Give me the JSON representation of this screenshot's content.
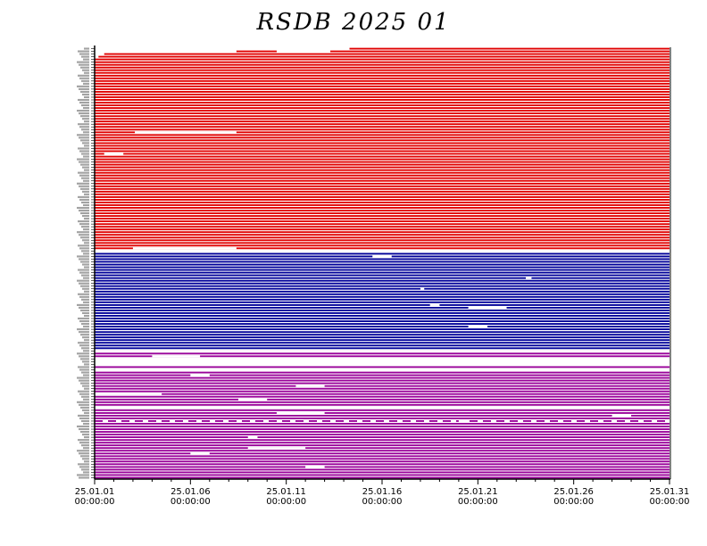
{
  "chart_data": {
    "type": "bar",
    "title": "RSDB  2025  01",
    "xlabel": "",
    "ylabel": "",
    "x_range": [
      "25.01.01 00:00:00",
      "25.01.31 00:00:00"
    ],
    "x_ticks": [
      {
        "date": "25.01.01",
        "time": "00:00:00",
        "day": 0
      },
      {
        "date": "25.01.06",
        "time": "00:00:00",
        "day": 5
      },
      {
        "date": "25.01.11",
        "time": "00:00:00",
        "day": 10
      },
      {
        "date": "25.01.16",
        "time": "00:00:00",
        "day": 15
      },
      {
        "date": "25.01.21",
        "time": "00:00:00",
        "day": 20
      },
      {
        "date": "25.01.26",
        "time": "00:00:00",
        "day": 25
      },
      {
        "date": "25.01.31",
        "time": "00:00:00",
        "day": 30
      }
    ],
    "grid": false,
    "legend": "none",
    "series": [
      {
        "color": "#e00000",
        "rows": 75
      },
      {
        "color": "#000099",
        "rows": 37
      },
      {
        "color": "#990099",
        "rows": 48
      }
    ],
    "gaps": [
      {
        "row": 0,
        "start": 0,
        "end": 13.3
      },
      {
        "row": 1,
        "start": 0,
        "end": 7.4
      },
      {
        "row": 1,
        "start": 9.5,
        "end": 12.3
      },
      {
        "row": 2,
        "start": 0,
        "end": 0.5
      },
      {
        "row": 3,
        "start": 0,
        "end": 0.2
      },
      {
        "row": 31,
        "start": 2.1,
        "end": 7.4
      },
      {
        "row": 39,
        "start": 0.5,
        "end": 1.5
      },
      {
        "row": 74,
        "start": 2.0,
        "end": 7.4
      },
      {
        "row": 75,
        "start": 0,
        "end": 30
      },
      {
        "row": 77,
        "start": 14.5,
        "end": 15.5
      },
      {
        "row": 85,
        "start": 22.5,
        "end": 22.8
      },
      {
        "row": 89,
        "start": 17.0,
        "end": 17.2
      },
      {
        "row": 95,
        "start": 17.5,
        "end": 18.0
      },
      {
        "row": 96,
        "start": 19.5,
        "end": 21.5
      },
      {
        "row": 103,
        "start": 19.5,
        "end": 20.5
      },
      {
        "row": 112,
        "start": 0,
        "end": 30
      },
      {
        "row": 114,
        "start": 3.0,
        "end": 5.5
      },
      {
        "row": 115,
        "start": 0,
        "end": 30
      },
      {
        "row": 116,
        "start": 0,
        "end": 30
      },
      {
        "row": 117,
        "start": 0,
        "end": 30
      },
      {
        "row": 119,
        "start": 0,
        "end": 30
      },
      {
        "row": 121,
        "start": 5.0,
        "end": 6.0
      },
      {
        "row": 125,
        "start": 10.5,
        "end": 12.0
      },
      {
        "row": 128,
        "start": 0,
        "end": 3.5
      },
      {
        "row": 130,
        "start": 7.5,
        "end": 9.0
      },
      {
        "row": 133,
        "start": 0,
        "end": 30
      },
      {
        "row": 135,
        "start": 9.5,
        "end": 12.0
      },
      {
        "row": 136,
        "start": 27.0,
        "end": 28.0
      },
      {
        "row": 138,
        "start": 19.0,
        "end": 19.5
      },
      {
        "row": 144,
        "start": 8.0,
        "end": 8.5
      },
      {
        "row": 148,
        "start": 8.0,
        "end": 11.0
      },
      {
        "row": 150,
        "start": 5.0,
        "end": 6.0
      },
      {
        "row": 155,
        "start": 11.0,
        "end": 12.0
      }
    ],
    "dashed_row": 138
  }
}
